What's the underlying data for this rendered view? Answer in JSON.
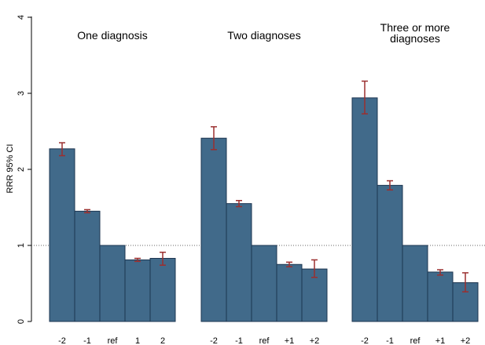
{
  "chart_data": {
    "type": "bar",
    "ylabel": "RRR 95% CI",
    "ylim": [
      0,
      4
    ],
    "yticks": [
      "0",
      "1",
      "2",
      "3",
      "4"
    ],
    "reference_line": 1,
    "bar_color": "#416a8a",
    "errorbar_color": "#9b2f2f",
    "panels": [
      {
        "title_lines": [
          "One diagnosis"
        ],
        "categories": [
          "-2",
          "-1",
          "ref",
          "1",
          "2"
        ],
        "values": [
          2.27,
          1.45,
          1.0,
          0.81,
          0.83
        ],
        "ci_low": [
          2.18,
          1.43,
          null,
          0.79,
          0.74
        ],
        "ci_high": [
          2.35,
          1.47,
          null,
          0.83,
          0.91
        ]
      },
      {
        "title_lines": [
          "Two diagnoses"
        ],
        "categories": [
          "-2",
          "-1",
          "ref",
          "+1",
          "+2"
        ],
        "values": [
          2.41,
          1.55,
          1.0,
          0.75,
          0.69
        ],
        "ci_low": [
          2.26,
          1.51,
          null,
          0.72,
          0.58
        ],
        "ci_high": [
          2.56,
          1.59,
          null,
          0.78,
          0.81
        ]
      },
      {
        "title_lines": [
          "Three or more",
          "diagnoses"
        ],
        "categories": [
          "-2",
          "-1",
          "ref",
          "+1",
          "+2"
        ],
        "values": [
          2.94,
          1.79,
          1.0,
          0.65,
          0.51
        ],
        "ci_low": [
          2.73,
          1.73,
          null,
          0.61,
          0.39
        ],
        "ci_high": [
          3.16,
          1.85,
          null,
          0.68,
          0.64
        ]
      }
    ]
  }
}
